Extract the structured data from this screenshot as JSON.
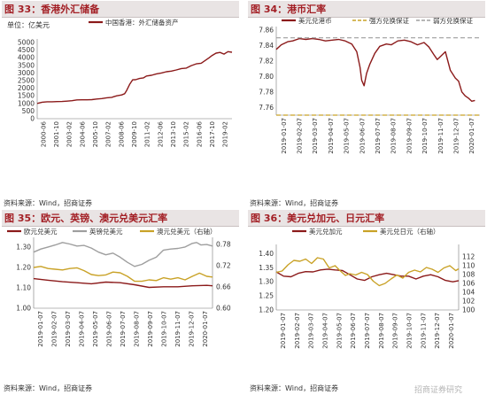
{
  "panels": {
    "p33": {
      "title": "图 33：香港外汇储备",
      "source": "资料来源：Wind，招商证券"
    },
    "p34": {
      "title": "图 34：港币汇率",
      "source": "资料来源：Wind，招商证券"
    },
    "p35": {
      "title": "图 35：欧元、英镑、澳元兑美元汇率",
      "source": "资料来源：Wind，招商证券"
    },
    "p36": {
      "title": "图 36：美元兑加元、日元汇率",
      "source": "资料来源：Wind，招商证券"
    }
  },
  "watermark": "招商证券研究",
  "colors": {
    "red": "#8b1a1a",
    "gold": "#c9a227",
    "gray": "#9e9e9e",
    "black": "#222222",
    "title": "#a31f25"
  },
  "chart_data": [
    {
      "id": "p33",
      "type": "line",
      "unit_label": "单位：亿美元",
      "ylim": [
        0,
        5000
      ],
      "y_ticks": [
        "0",
        "500",
        "1000",
        "1500",
        "2000",
        "2500",
        "3000",
        "3500",
        "4000",
        "4500",
        "5000"
      ],
      "x_ticks": [
        "2000-06",
        "2001-10",
        "2003-02",
        "2004-06",
        "2005-10",
        "2007-02",
        "2008-06",
        "2009-10",
        "2011-02",
        "2012-06",
        "2013-10",
        "2015-02",
        "2016-06",
        "2017-10",
        "2019-02"
      ],
      "xlim": [
        2000.0,
        2019.6
      ],
      "series": [
        {
          "name": "中国香港：外汇储备资产",
          "color": "#8b1a1a",
          "x": [
            2000.0,
            2000.5,
            2001.0,
            2001.5,
            2002.0,
            2002.5,
            2003.0,
            2003.5,
            2004.0,
            2004.5,
            2005.0,
            2005.5,
            2006.0,
            2006.5,
            2007.0,
            2007.5,
            2008.0,
            2008.5,
            2008.8,
            2009.0,
            2009.3,
            2009.6,
            2009.9,
            2010.3,
            2010.7,
            2011.0,
            2011.5,
            2012.0,
            2012.5,
            2013.0,
            2013.5,
            2014.0,
            2014.5,
            2015.0,
            2015.5,
            2016.0,
            2016.5,
            2017.0,
            2017.3,
            2017.6,
            2018.0,
            2018.4,
            2018.8,
            2019.2,
            2019.6
          ],
          "values": [
            1000,
            1080,
            1110,
            1110,
            1120,
            1130,
            1150,
            1180,
            1230,
            1240,
            1240,
            1250,
            1290,
            1320,
            1370,
            1400,
            1500,
            1560,
            1640,
            1850,
            2250,
            2550,
            2560,
            2640,
            2680,
            2800,
            2850,
            2940,
            3000,
            3080,
            3120,
            3200,
            3290,
            3320,
            3480,
            3600,
            3640,
            3860,
            4000,
            4150,
            4300,
            4350,
            4240,
            4400,
            4360
          ]
        }
      ]
    },
    {
      "id": "p34",
      "type": "line",
      "ylim": [
        7.75,
        7.86
      ],
      "y_ticks": [
        "7.76",
        "7.78",
        "7.80",
        "7.82",
        "7.84",
        "7.86"
      ],
      "x_ticks": [
        "2019-01-07",
        "2019-02-07",
        "2019-03-07",
        "2019-04-07",
        "2019-05-07",
        "2019-06-07",
        "2019-07-07",
        "2019-08-07",
        "2019-09-07",
        "2019-10-07",
        "2019-11-07",
        "2019-12-07",
        "2020-01-07"
      ],
      "xlim": [
        0,
        12.4
      ],
      "series": [
        {
          "name": "美元兑港币",
          "color": "#8b1a1a",
          "x": [
            0,
            0.3,
            0.7,
            1.0,
            1.4,
            1.8,
            2.2,
            2.6,
            3.0,
            3.4,
            3.8,
            4.2,
            4.6,
            4.9,
            5.1,
            5.2,
            5.35,
            5.5,
            5.7,
            6.0,
            6.3,
            6.7,
            7.0,
            7.4,
            7.8,
            8.2,
            8.6,
            9.0,
            9.3,
            9.6,
            9.8,
            10.0,
            10.3,
            10.6,
            10.9,
            11.1,
            11.3,
            11.5,
            11.7,
            11.9,
            12.1
          ],
          "values": [
            7.835,
            7.841,
            7.845,
            7.846,
            7.849,
            7.848,
            7.849,
            7.848,
            7.846,
            7.847,
            7.848,
            7.846,
            7.842,
            7.832,
            7.812,
            7.795,
            7.788,
            7.804,
            7.816,
            7.83,
            7.839,
            7.842,
            7.841,
            7.846,
            7.847,
            7.845,
            7.841,
            7.844,
            7.838,
            7.828,
            7.822,
            7.826,
            7.832,
            7.808,
            7.798,
            7.794,
            7.78,
            7.775,
            7.772,
            7.768,
            7.769
          ]
        },
        {
          "name": "强方兑换保证",
          "color": "#c9a227",
          "dashed": true,
          "x": [
            0,
            12.4
          ],
          "values": [
            7.75,
            7.75
          ]
        },
        {
          "name": "弱方兑换保证",
          "color": "#9e9e9e",
          "dashed": true,
          "x": [
            0,
            12.4
          ],
          "values": [
            7.85,
            7.85
          ]
        }
      ]
    },
    {
      "id": "p35",
      "type": "line",
      "ylim": [
        1.0,
        1.33
      ],
      "y_ticks": [
        "1.00",
        "1.10",
        "1.20",
        "1.30"
      ],
      "y2lim": [
        0.6,
        0.79
      ],
      "y2_ticks": [
        "0.60",
        "0.66",
        "0.72",
        "0.78"
      ],
      "x_ticks": [
        "2019-01-07",
        "2019-02-07",
        "2019-03-07",
        "2019-04-07",
        "2019-05-07",
        "2019-06-07",
        "2019-07-07",
        "2019-08-07",
        "2019-09-07",
        "2019-10-07",
        "2019-11-07",
        "2019-12-07",
        "2020-01-07"
      ],
      "xlim": [
        0,
        12.4
      ],
      "series": [
        {
          "name": "欧元兑美元",
          "color": "#8b1a1a",
          "axis": "left",
          "x": [
            0,
            1,
            2,
            3,
            4,
            5,
            6,
            7,
            8,
            9,
            10,
            11,
            12,
            12.4
          ],
          "values": [
            1.145,
            1.137,
            1.13,
            1.125,
            1.12,
            1.128,
            1.125,
            1.115,
            1.102,
            1.105,
            1.105,
            1.11,
            1.112,
            1.11
          ]
        },
        {
          "name": "英镑兑美元",
          "color": "#9e9e9e",
          "axis": "left",
          "x": [
            0,
            0.5,
            1,
            1.5,
            2,
            2.5,
            3,
            3.5,
            4,
            4.5,
            5,
            5.5,
            6,
            6.5,
            7,
            7.5,
            8,
            8.5,
            9,
            9.5,
            10,
            10.5,
            11,
            11.3,
            11.6,
            12,
            12.4
          ],
          "values": [
            1.275,
            1.29,
            1.3,
            1.31,
            1.322,
            1.315,
            1.305,
            1.308,
            1.295,
            1.275,
            1.262,
            1.27,
            1.25,
            1.225,
            1.205,
            1.215,
            1.235,
            1.25,
            1.285,
            1.29,
            1.293,
            1.3,
            1.318,
            1.322,
            1.31,
            1.312,
            1.305
          ]
        },
        {
          "name": "澳元兑美元（右轴）",
          "color": "#c9a227",
          "axis": "right",
          "x": [
            0,
            0.5,
            1,
            1.5,
            2,
            2.5,
            3,
            3.5,
            4,
            4.5,
            5,
            5.5,
            6,
            6.5,
            7,
            7.5,
            8,
            8.5,
            9,
            9.5,
            10,
            10.5,
            11,
            11.5,
            12,
            12.4
          ],
          "values": [
            0.715,
            0.718,
            0.712,
            0.71,
            0.708,
            0.712,
            0.714,
            0.706,
            0.695,
            0.692,
            0.694,
            0.702,
            0.7,
            0.69,
            0.676,
            0.676,
            0.68,
            0.678,
            0.686,
            0.682,
            0.686,
            0.68,
            0.69,
            0.699,
            0.69,
            0.688
          ]
        }
      ]
    },
    {
      "id": "p36",
      "type": "line",
      "ylim": [
        1.2,
        1.42
      ],
      "y_ticks": [
        "1.20",
        "1.25",
        "1.30",
        "1.35",
        "1.40"
      ],
      "y2lim": [
        100,
        114
      ],
      "y2_ticks": [
        "100",
        "102",
        "104",
        "106",
        "108",
        "110",
        "112"
      ],
      "x_ticks": [
        "2019-01-07",
        "2019-02-07",
        "2019-03-07",
        "2019-04-07",
        "2019-05-07",
        "2019-06-07",
        "2019-07-07",
        "2019-08-07",
        "2019-09-07",
        "2019-10-07",
        "2019-11-07",
        "2019-12-07",
        "2020-01-07"
      ],
      "xlim": [
        0,
        12.4
      ],
      "series": [
        {
          "name": "美元兑加元",
          "color": "#8b1a1a",
          "axis": "left",
          "x": [
            0,
            0.5,
            1,
            1.5,
            2,
            2.5,
            3,
            3.5,
            4,
            4.5,
            5,
            5.5,
            6,
            6.5,
            7,
            7.5,
            8,
            8.5,
            9,
            9.5,
            10,
            10.5,
            11,
            11.5,
            12,
            12.4
          ],
          "values": [
            1.335,
            1.32,
            1.318,
            1.33,
            1.336,
            1.335,
            1.342,
            1.345,
            1.342,
            1.34,
            1.325,
            1.31,
            1.305,
            1.318,
            1.325,
            1.33,
            1.325,
            1.32,
            1.32,
            1.31,
            1.32,
            1.325,
            1.318,
            1.305,
            1.3,
            1.304
          ]
        },
        {
          "name": "美元兑日元（右轴）",
          "color": "#c9a227",
          "axis": "right",
          "x": [
            0,
            0.4,
            0.8,
            1.2,
            1.6,
            2.0,
            2.4,
            2.8,
            3.2,
            3.6,
            4.0,
            4.3,
            4.7,
            5.0,
            5.4,
            5.8,
            6.2,
            6.6,
            7.0,
            7.4,
            7.8,
            8.2,
            8.6,
            9.0,
            9.4,
            9.8,
            10.2,
            10.6,
            11.0,
            11.4,
            11.8,
            12.2,
            12.4
          ],
          "values": [
            108.5,
            108.8,
            110.2,
            111.2,
            111.0,
            111.5,
            110.5,
            111.8,
            111.5,
            109.5,
            110.0,
            109.0,
            107.8,
            108.2,
            107.9,
            108.5,
            108.0,
            106.5,
            105.5,
            106.0,
            107.0,
            107.9,
            107.2,
            108.5,
            109.0,
            108.6,
            109.6,
            109.2,
            108.5,
            109.5,
            110.0,
            108.9,
            109.3
          ]
        }
      ]
    }
  ]
}
